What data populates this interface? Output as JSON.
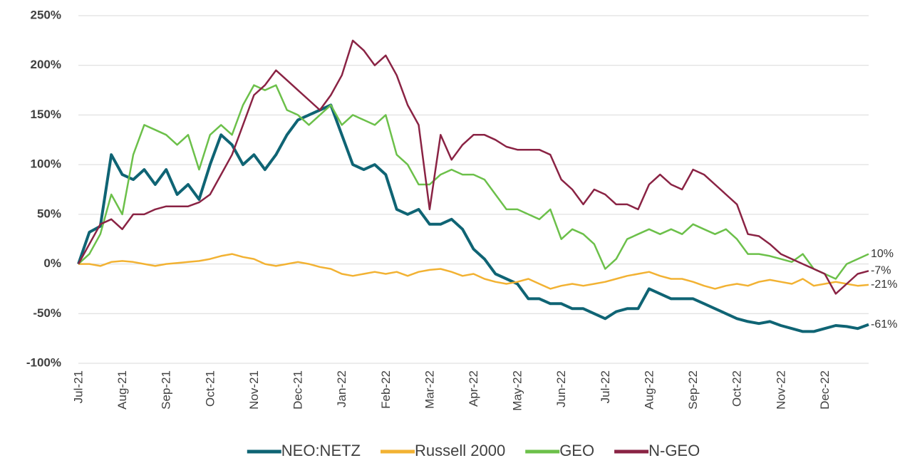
{
  "chart_data": {
    "type": "line",
    "categories": [
      "Jul-21",
      null,
      null,
      null,
      "Aug-21",
      null,
      null,
      null,
      "Sep-21",
      null,
      null,
      null,
      "Oct-21",
      null,
      null,
      null,
      "Nov-21",
      null,
      null,
      null,
      "Dec-21",
      null,
      null,
      null,
      "Jan-22",
      null,
      null,
      null,
      "Feb-22",
      null,
      null,
      null,
      "Mar-22",
      null,
      null,
      null,
      "Apr-22",
      null,
      null,
      null,
      "May-22",
      null,
      null,
      null,
      "Jun-22",
      null,
      null,
      null,
      "Jul-22",
      null,
      null,
      null,
      "Aug-22",
      null,
      null,
      null,
      "Sep-22",
      null,
      null,
      null,
      "Oct-22",
      null,
      null,
      null,
      "Nov-22",
      null,
      null,
      null,
      "Dec-22",
      null,
      null,
      null,
      null
    ],
    "series": [
      {
        "name": "NEO:NETZ",
        "color": "#0f6474",
        "width": 4,
        "end_label": "-61%",
        "values": [
          0,
          32,
          38,
          110,
          90,
          85,
          95,
          80,
          95,
          70,
          80,
          65,
          100,
          130,
          120,
          100,
          110,
          95,
          110,
          130,
          145,
          150,
          155,
          160,
          130,
          100,
          95,
          100,
          90,
          55,
          50,
          55,
          40,
          40,
          45,
          35,
          15,
          5,
          -10,
          -15,
          -20,
          -35,
          -35,
          -40,
          -40,
          -45,
          -45,
          -50,
          -55,
          -48,
          -45,
          -45,
          -25,
          -30,
          -35,
          -35,
          -35,
          -40,
          -45,
          -50,
          -55,
          -58,
          -60,
          -58,
          -62,
          -65,
          -68,
          -68,
          -65,
          -62,
          -63,
          -65,
          -61
        ]
      },
      {
        "name": "Russell 2000",
        "color": "#f2b233",
        "width": 2.5,
        "end_label": "-21%",
        "values": [
          0,
          0,
          -2,
          2,
          3,
          2,
          0,
          -2,
          0,
          1,
          2,
          3,
          5,
          8,
          10,
          7,
          5,
          0,
          -2,
          0,
          2,
          0,
          -3,
          -5,
          -10,
          -12,
          -10,
          -8,
          -10,
          -8,
          -12,
          -8,
          -6,
          -5,
          -8,
          -12,
          -10,
          -15,
          -18,
          -20,
          -18,
          -15,
          -20,
          -25,
          -22,
          -20,
          -22,
          -20,
          -18,
          -15,
          -12,
          -10,
          -8,
          -12,
          -15,
          -15,
          -18,
          -22,
          -25,
          -22,
          -20,
          -22,
          -18,
          -16,
          -18,
          -20,
          -15,
          -22,
          -20,
          -18,
          -20,
          -22,
          -21
        ]
      },
      {
        "name": "GEO",
        "color": "#6cc04a",
        "width": 2.5,
        "end_label": "10%",
        "values": [
          0,
          10,
          30,
          70,
          50,
          110,
          140,
          135,
          130,
          120,
          130,
          95,
          130,
          140,
          130,
          160,
          180,
          175,
          180,
          155,
          150,
          140,
          150,
          160,
          140,
          150,
          145,
          140,
          150,
          110,
          100,
          80,
          80,
          90,
          95,
          90,
          90,
          85,
          70,
          55,
          55,
          50,
          45,
          55,
          25,
          35,
          30,
          20,
          -5,
          5,
          25,
          30,
          35,
          30,
          35,
          30,
          40,
          35,
          30,
          35,
          25,
          10,
          10,
          8,
          5,
          2,
          10,
          -5,
          -10,
          -15,
          0,
          5,
          10
        ]
      },
      {
        "name": "N-GEO",
        "color": "#8a2344",
        "width": 2.5,
        "end_label": "-7%",
        "values": [
          0,
          20,
          40,
          45,
          35,
          50,
          50,
          55,
          58,
          58,
          58,
          62,
          70,
          90,
          110,
          140,
          170,
          180,
          195,
          185,
          175,
          165,
          155,
          170,
          190,
          225,
          215,
          200,
          210,
          190,
          160,
          140,
          55,
          130,
          105,
          120,
          130,
          130,
          125,
          118,
          115,
          115,
          115,
          110,
          85,
          75,
          60,
          75,
          70,
          60,
          60,
          55,
          80,
          90,
          80,
          75,
          95,
          90,
          80,
          70,
          60,
          30,
          28,
          20,
          10,
          5,
          0,
          -5,
          -10,
          -30,
          -20,
          -10,
          -7
        ]
      }
    ],
    "ylim": [
      -100,
      250
    ],
    "yticks": [
      {
        "value": -100,
        "label": "-100%"
      },
      {
        "value": -50,
        "label": "-50%"
      },
      {
        "value": 0,
        "label": "0%"
      },
      {
        "value": 50,
        "label": "50%"
      },
      {
        "value": 100,
        "label": "100%"
      },
      {
        "value": 150,
        "label": "150%"
      },
      {
        "value": 200,
        "label": "200%"
      },
      {
        "value": 250,
        "label": "250%"
      }
    ],
    "grid": true,
    "legend": "bottom"
  }
}
